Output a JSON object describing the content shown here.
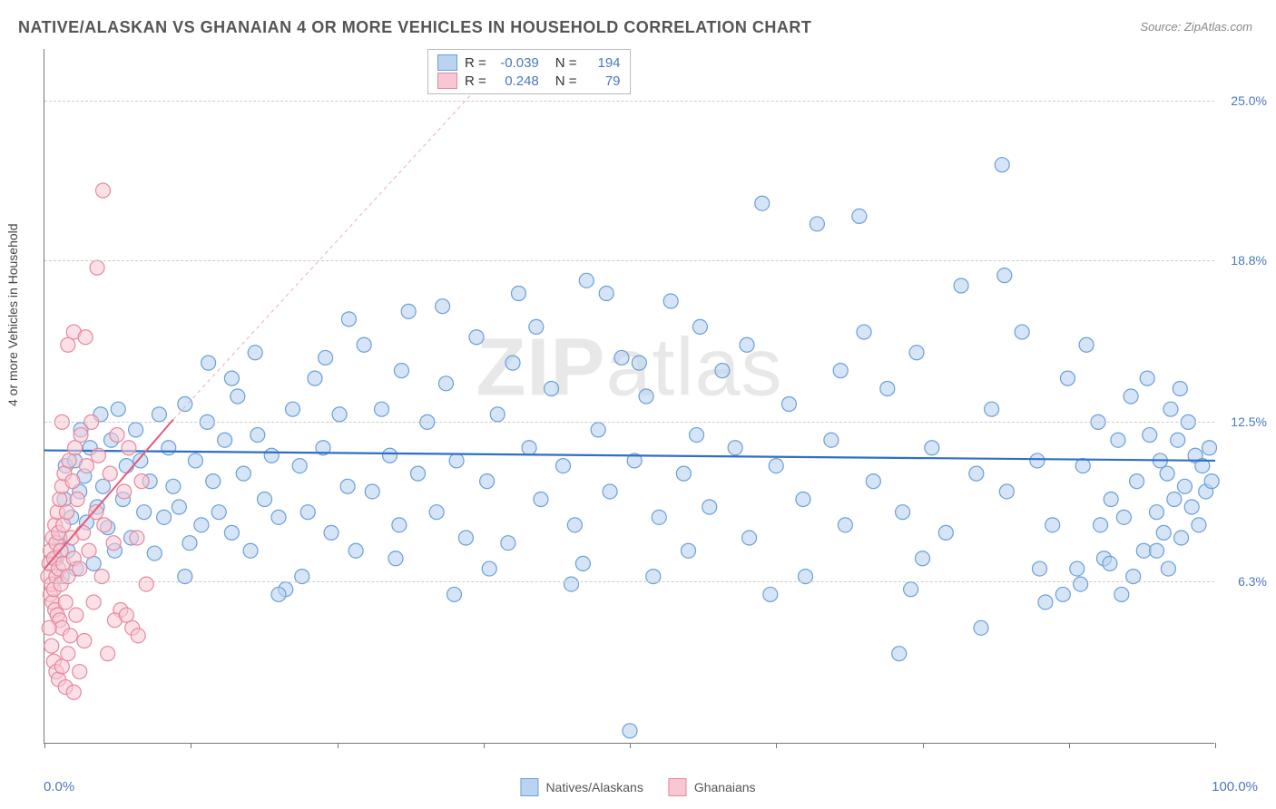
{
  "title": "NATIVE/ALASKAN VS GHANAIAN 4 OR MORE VEHICLES IN HOUSEHOLD CORRELATION CHART",
  "source": "Source: ZipAtlas.com",
  "ylabel": "4 or more Vehicles in Household",
  "watermark_a": "ZIP",
  "watermark_b": "atlas",
  "chart": {
    "type": "scatter",
    "background_color": "#ffffff",
    "grid_color": "#cccccc",
    "axis_color": "#777777",
    "xlim": [
      0,
      100
    ],
    "ylim": [
      0,
      27
    ],
    "yticks": [
      {
        "v": 6.3,
        "label": "6.3%"
      },
      {
        "v": 12.5,
        "label": "12.5%"
      },
      {
        "v": 18.8,
        "label": "18.8%"
      },
      {
        "v": 25.0,
        "label": "25.0%"
      }
    ],
    "xtick_positions": [
      0,
      12.5,
      25,
      37.5,
      50,
      62.5,
      75,
      87.5,
      100
    ],
    "xaxis_left_label": "0.0%",
    "xaxis_right_label": "100.0%",
    "marker_radius": 8,
    "marker_stroke_width": 1.2,
    "series": [
      {
        "name": "Natives/Alaskans",
        "fill": "#b9d3f0",
        "stroke": "#6b9fd8",
        "fill_opacity": 0.6,
        "R": "-0.039",
        "N": "194",
        "regression": {
          "x1": 0,
          "y1": 11.4,
          "x2": 100,
          "y2": 11.0,
          "color": "#2f6fc4",
          "width": 2.2,
          "dash": "none"
        },
        "extrapolation": null,
        "points": [
          [
            1.0,
            7.2
          ],
          [
            1.3,
            8.0
          ],
          [
            1.5,
            6.5
          ],
          [
            1.7,
            9.5
          ],
          [
            1.8,
            10.8
          ],
          [
            2.0,
            7.5
          ],
          [
            2.3,
            8.8
          ],
          [
            2.6,
            11.0
          ],
          [
            2.7,
            6.8
          ],
          [
            3.0,
            9.8
          ],
          [
            3.1,
            12.2
          ],
          [
            3.4,
            10.4
          ],
          [
            3.6,
            8.6
          ],
          [
            3.9,
            11.5
          ],
          [
            4.2,
            7.0
          ],
          [
            4.5,
            9.2
          ],
          [
            4.8,
            12.8
          ],
          [
            5.0,
            10.0
          ],
          [
            5.4,
            8.4
          ],
          [
            5.7,
            11.8
          ],
          [
            6.0,
            7.5
          ],
          [
            6.3,
            13.0
          ],
          [
            6.7,
            9.5
          ],
          [
            7.0,
            10.8
          ],
          [
            7.4,
            8.0
          ],
          [
            7.8,
            12.2
          ],
          [
            8.2,
            11.0
          ],
          [
            8.5,
            9.0
          ],
          [
            9.0,
            10.2
          ],
          [
            9.4,
            7.4
          ],
          [
            9.8,
            12.8
          ],
          [
            10.2,
            8.8
          ],
          [
            10.6,
            11.5
          ],
          [
            11.0,
            10.0
          ],
          [
            11.5,
            9.2
          ],
          [
            12.0,
            13.2
          ],
          [
            12.4,
            7.8
          ],
          [
            12.9,
            11.0
          ],
          [
            13.4,
            8.5
          ],
          [
            13.9,
            12.5
          ],
          [
            14.4,
            10.2
          ],
          [
            14.9,
            9.0
          ],
          [
            15.4,
            11.8
          ],
          [
            16.0,
            8.2
          ],
          [
            16.5,
            13.5
          ],
          [
            17.0,
            10.5
          ],
          [
            17.6,
            7.5
          ],
          [
            18.2,
            12.0
          ],
          [
            18.8,
            9.5
          ],
          [
            19.4,
            11.2
          ],
          [
            20.0,
            8.8
          ],
          [
            20.6,
            6.0
          ],
          [
            21.2,
            13.0
          ],
          [
            21.8,
            10.8
          ],
          [
            22.5,
            9.0
          ],
          [
            23.1,
            14.2
          ],
          [
            23.8,
            11.5
          ],
          [
            24.5,
            8.2
          ],
          [
            25.2,
            12.8
          ],
          [
            25.9,
            10.0
          ],
          [
            26.6,
            7.5
          ],
          [
            27.3,
            15.5
          ],
          [
            28.0,
            9.8
          ],
          [
            28.8,
            13.0
          ],
          [
            29.5,
            11.2
          ],
          [
            30.3,
            8.5
          ],
          [
            31.1,
            16.8
          ],
          [
            31.9,
            10.5
          ],
          [
            32.7,
            12.5
          ],
          [
            33.5,
            9.0
          ],
          [
            34.3,
            14.0
          ],
          [
            35.2,
            11.0
          ],
          [
            36.0,
            8.0
          ],
          [
            36.9,
            15.8
          ],
          [
            37.8,
            10.2
          ],
          [
            38.7,
            12.8
          ],
          [
            39.6,
            7.8
          ],
          [
            40.5,
            17.5
          ],
          [
            41.4,
            11.5
          ],
          [
            42.4,
            9.5
          ],
          [
            43.3,
            13.8
          ],
          [
            44.3,
            10.8
          ],
          [
            45.3,
            8.5
          ],
          [
            46.3,
            18.0
          ],
          [
            47.3,
            12.2
          ],
          [
            48.3,
            9.8
          ],
          [
            49.3,
            15.0
          ],
          [
            50.0,
            0.5
          ],
          [
            50.4,
            11.0
          ],
          [
            51.4,
            13.5
          ],
          [
            52.5,
            8.8
          ],
          [
            53.5,
            17.2
          ],
          [
            54.6,
            10.5
          ],
          [
            55.7,
            12.0
          ],
          [
            56.8,
            9.2
          ],
          [
            57.9,
            14.5
          ],
          [
            59.0,
            11.5
          ],
          [
            60.2,
            8.0
          ],
          [
            61.3,
            21.0
          ],
          [
            62.5,
            10.8
          ],
          [
            63.6,
            13.2
          ],
          [
            64.8,
            9.5
          ],
          [
            66.0,
            20.2
          ],
          [
            67.2,
            11.8
          ],
          [
            68.4,
            8.5
          ],
          [
            69.6,
            20.5
          ],
          [
            70.8,
            10.2
          ],
          [
            72.0,
            13.8
          ],
          [
            73.0,
            3.5
          ],
          [
            73.3,
            9.0
          ],
          [
            74.5,
            15.2
          ],
          [
            75.8,
            11.5
          ],
          [
            77.0,
            8.2
          ],
          [
            78.3,
            17.8
          ],
          [
            79.6,
            10.5
          ],
          [
            80.9,
            13.0
          ],
          [
            81.8,
            22.5
          ],
          [
            82.2,
            9.8
          ],
          [
            83.5,
            16.0
          ],
          [
            84.8,
            11.0
          ],
          [
            86.1,
            8.5
          ],
          [
            87.4,
            14.2
          ],
          [
            88.2,
            6.8
          ],
          [
            88.7,
            10.8
          ],
          [
            90.0,
            12.5
          ],
          [
            90.5,
            7.2
          ],
          [
            91.1,
            9.5
          ],
          [
            91.7,
            11.8
          ],
          [
            92.2,
            8.8
          ],
          [
            92.8,
            13.5
          ],
          [
            93.3,
            10.2
          ],
          [
            93.9,
            7.5
          ],
          [
            94.4,
            12.0
          ],
          [
            95.0,
            9.0
          ],
          [
            95.3,
            11.0
          ],
          [
            95.6,
            8.2
          ],
          [
            95.9,
            10.5
          ],
          [
            96.2,
            13.0
          ],
          [
            96.5,
            9.5
          ],
          [
            96.8,
            11.8
          ],
          [
            97.1,
            8.0
          ],
          [
            97.4,
            10.0
          ],
          [
            97.7,
            12.5
          ],
          [
            98.0,
            9.2
          ],
          [
            98.3,
            11.2
          ],
          [
            98.6,
            8.5
          ],
          [
            98.9,
            10.8
          ],
          [
            99.2,
            9.8
          ],
          [
            99.5,
            11.5
          ],
          [
            99.7,
            10.2
          ],
          [
            14.0,
            14.8
          ],
          [
            18.0,
            15.2
          ],
          [
            22.0,
            6.5
          ],
          [
            26.0,
            16.5
          ],
          [
            30.0,
            7.2
          ],
          [
            34.0,
            17.0
          ],
          [
            38.0,
            6.8
          ],
          [
            42.0,
            16.2
          ],
          [
            46.0,
            7.0
          ],
          [
            50.8,
            14.8
          ],
          [
            55.0,
            7.5
          ],
          [
            60.0,
            15.5
          ],
          [
            65.0,
            6.5
          ],
          [
            70.0,
            16.0
          ],
          [
            75.0,
            7.2
          ],
          [
            80.0,
            4.5
          ],
          [
            82.0,
            18.2
          ],
          [
            85.0,
            6.8
          ],
          [
            87.0,
            5.8
          ],
          [
            89.0,
            15.5
          ],
          [
            91.0,
            7.0
          ],
          [
            93.0,
            6.5
          ],
          [
            94.2,
            14.2
          ],
          [
            95.0,
            7.5
          ],
          [
            96.0,
            6.8
          ],
          [
            97.0,
            13.8
          ],
          [
            85.5,
            5.5
          ],
          [
            88.5,
            6.2
          ],
          [
            90.2,
            8.5
          ],
          [
            92.0,
            5.8
          ],
          [
            30.5,
            14.5
          ],
          [
            35.0,
            5.8
          ],
          [
            40.0,
            14.8
          ],
          [
            45.0,
            6.2
          ],
          [
            48.0,
            17.5
          ],
          [
            52.0,
            6.5
          ],
          [
            56.0,
            16.2
          ],
          [
            62.0,
            5.8
          ],
          [
            68.0,
            14.5
          ],
          [
            74.0,
            6.0
          ],
          [
            12.0,
            6.5
          ],
          [
            16.0,
            14.2
          ],
          [
            20.0,
            5.8
          ],
          [
            24.0,
            15.0
          ]
        ]
      },
      {
        "name": "Ghanaians",
        "fill": "#f7c8d4",
        "stroke": "#e6889c",
        "fill_opacity": 0.55,
        "R": "0.248",
        "N": "79",
        "regression": {
          "x1": 0,
          "y1": 6.8,
          "x2": 11,
          "y2": 12.6,
          "color": "#e35a7a",
          "width": 2.0,
          "dash": "none"
        },
        "extrapolation": {
          "x1": 11,
          "y1": 12.6,
          "x2": 40,
          "y2": 27.0,
          "color": "#f0a8b8",
          "width": 1,
          "dash": "4,4"
        },
        "points": [
          [
            0.3,
            6.5
          ],
          [
            0.4,
            7.0
          ],
          [
            0.5,
            5.8
          ],
          [
            0.5,
            7.5
          ],
          [
            0.6,
            6.2
          ],
          [
            0.7,
            8.0
          ],
          [
            0.7,
            5.5
          ],
          [
            0.8,
            7.2
          ],
          [
            0.8,
            6.0
          ],
          [
            0.9,
            8.5
          ],
          [
            0.9,
            5.2
          ],
          [
            1.0,
            7.8
          ],
          [
            1.0,
            6.5
          ],
          [
            1.1,
            9.0
          ],
          [
            1.1,
            5.0
          ],
          [
            1.2,
            8.2
          ],
          [
            1.2,
            6.8
          ],
          [
            1.3,
            9.5
          ],
          [
            1.3,
            4.8
          ],
          [
            1.4,
            7.5
          ],
          [
            1.4,
            6.2
          ],
          [
            1.5,
            10.0
          ],
          [
            1.5,
            4.5
          ],
          [
            1.6,
            8.5
          ],
          [
            1.6,
            7.0
          ],
          [
            1.7,
            10.5
          ],
          [
            1.8,
            5.5
          ],
          [
            1.9,
            9.0
          ],
          [
            2.0,
            6.5
          ],
          [
            2.1,
            11.0
          ],
          [
            2.2,
            4.2
          ],
          [
            2.3,
            8.0
          ],
          [
            2.4,
            10.2
          ],
          [
            2.5,
            7.2
          ],
          [
            2.6,
            11.5
          ],
          [
            2.7,
            5.0
          ],
          [
            2.8,
            9.5
          ],
          [
            3.0,
            6.8
          ],
          [
            3.1,
            12.0
          ],
          [
            3.3,
            8.2
          ],
          [
            3.4,
            4.0
          ],
          [
            3.6,
            10.8
          ],
          [
            3.8,
            7.5
          ],
          [
            4.0,
            12.5
          ],
          [
            4.2,
            5.5
          ],
          [
            4.4,
            9.0
          ],
          [
            4.6,
            11.2
          ],
          [
            4.9,
            6.5
          ],
          [
            5.1,
            8.5
          ],
          [
            5.4,
            3.5
          ],
          [
            5.6,
            10.5
          ],
          [
            5.9,
            7.8
          ],
          [
            6.2,
            12.0
          ],
          [
            6.5,
            5.2
          ],
          [
            6.8,
            9.8
          ],
          [
            7.2,
            11.5
          ],
          [
            7.5,
            4.5
          ],
          [
            7.9,
            8.0
          ],
          [
            8.3,
            10.2
          ],
          [
            8.7,
            6.2
          ],
          [
            0.4,
            4.5
          ],
          [
            0.6,
            3.8
          ],
          [
            0.8,
            3.2
          ],
          [
            1.0,
            2.8
          ],
          [
            1.2,
            2.5
          ],
          [
            1.5,
            3.0
          ],
          [
            1.8,
            2.2
          ],
          [
            2.0,
            3.5
          ],
          [
            2.5,
            2.0
          ],
          [
            3.0,
            2.8
          ],
          [
            2.0,
            15.5
          ],
          [
            2.5,
            16.0
          ],
          [
            4.5,
            18.5
          ],
          [
            5.0,
            21.5
          ],
          [
            1.5,
            12.5
          ],
          [
            3.5,
            15.8
          ],
          [
            6.0,
            4.8
          ],
          [
            7.0,
            5.0
          ],
          [
            8.0,
            4.2
          ]
        ]
      }
    ]
  },
  "legend": {
    "items": [
      {
        "label": "Natives/Alaskans",
        "fill": "#b9d3f0",
        "stroke": "#6b9fd8"
      },
      {
        "label": "Ghanaians",
        "fill": "#f7c8d4",
        "stroke": "#e6889c"
      }
    ]
  },
  "stats_labels": {
    "R": "R =",
    "N": "N ="
  }
}
